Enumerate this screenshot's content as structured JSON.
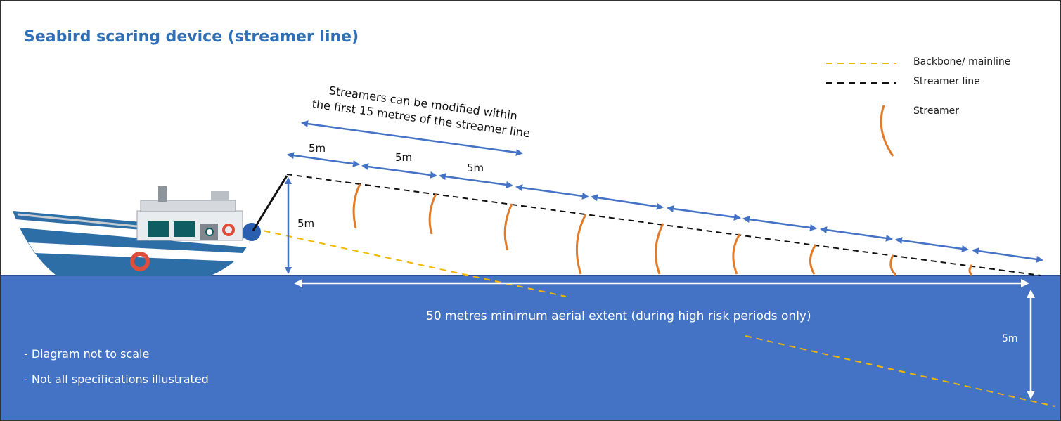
{
  "title": "Seabird scaring device (streamer line)",
  "legend": [
    {
      "label": "Backbone/ mainline",
      "color": "#f2b705",
      "style": "dashed"
    },
    {
      "label": "Streamer line",
      "color": "#000000",
      "style": "dashed"
    },
    {
      "label": "Streamer",
      "color": "#e07b2b",
      "style": "curve"
    }
  ],
  "annotation": {
    "line1": "Streamers can be modified within",
    "line2": "the first 15 metres of the streamer line"
  },
  "segment_labels": [
    "5m",
    "5m",
    "5m"
  ],
  "height_label": "5m",
  "extent_label": "50 metres minimum aerial extent (during high risk periods only)",
  "depth_label": "5m",
  "notes": [
    "- Diagram not to scale",
    "- Not all specifications illustrated"
  ],
  "colors": {
    "sea": "#4472c4",
    "arrow": "#4472c4",
    "title": "#2f6fb5",
    "streamer": "#e07b2b",
    "mainline": "#f2b705"
  }
}
